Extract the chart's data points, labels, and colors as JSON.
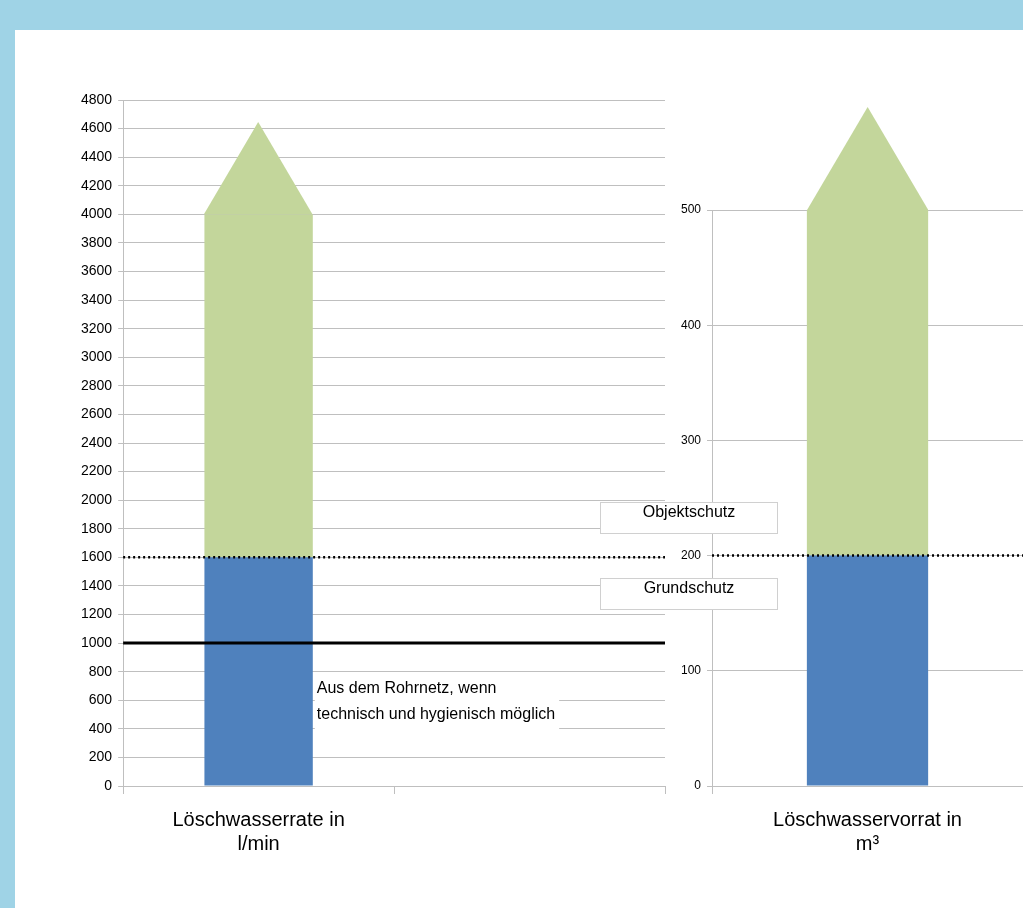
{
  "chart_data": [
    {
      "type": "bar",
      "stacked": true,
      "categories": [
        "Löschwasserrate in l/min",
        null
      ],
      "series": [
        {
          "color": "#4f81bd",
          "values": [
            1600,
            null
          ]
        },
        {
          "color": "#c3d69b",
          "values": [
            2400,
            null
          ]
        }
      ],
      "ylim": [
        0,
        4800
      ],
      "yticks": [
        0,
        200,
        400,
        600,
        800,
        1000,
        1200,
        1400,
        1600,
        1800,
        2000,
        2200,
        2400,
        2600,
        2800,
        3000,
        3200,
        3400,
        3600,
        3800,
        4000,
        4200,
        4400,
        4600,
        4800
      ],
      "grid": "y",
      "legend": false,
      "ref_lines": [
        {
          "axis": "y",
          "value": 1600,
          "line_style": "dotted",
          "color": "#000000"
        },
        {
          "axis": "y",
          "value": 1000,
          "line_style": "solid",
          "color": "#000000",
          "label": "Aus dem Rohrnetz, wenn technisch und hygienisch möglich"
        }
      ]
    },
    {
      "type": "bar",
      "stacked": true,
      "categories": [
        "Löschwasservorrat in m³"
      ],
      "series": [
        {
          "color": "#4f81bd",
          "values": [
            200
          ]
        },
        {
          "color": "#c3d69b",
          "values": [
            300
          ]
        }
      ],
      "ylim": [
        0,
        500
      ],
      "yticks": [
        0,
        100,
        200,
        300,
        400,
        500
      ],
      "grid": "y",
      "legend": false,
      "ref_lines": [
        {
          "axis": "y",
          "value": 200,
          "line_style": "dotted",
          "color": "#000000"
        }
      ],
      "annotations": [
        "Objektschutz",
        "Grundschutz"
      ]
    }
  ]
}
